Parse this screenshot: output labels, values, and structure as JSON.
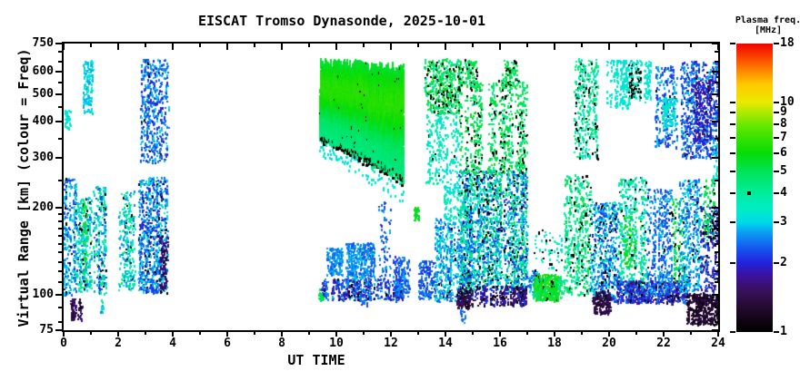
{
  "title": "EISCAT Tromso Dynasonde, 2025-10-01",
  "axes": {
    "xlabel": "UT TIME",
    "ylabel": "Virtual Range [km] (colour = Freq)",
    "x_ticks": [
      0,
      2,
      4,
      6,
      8,
      10,
      12,
      14,
      16,
      18,
      20,
      22,
      24
    ],
    "x_minor_ticks": [
      1,
      3,
      5,
      7,
      9,
      11,
      13,
      15,
      17,
      19,
      21,
      23
    ],
    "x_range": [
      0,
      24
    ],
    "y_ticks": [
      75,
      100,
      200,
      300,
      400,
      500,
      600,
      750
    ],
    "y_minor_ticks": [
      80,
      90,
      110,
      120,
      130,
      140,
      150,
      160,
      170,
      180,
      190,
      250,
      350,
      450,
      550,
      650,
      700
    ],
    "y_range": [
      75,
      750
    ],
    "y_scale": "log",
    "grid": "off"
  },
  "colorbar": {
    "title_line1": "Plasma freq.",
    "title_line2": "[MHz]",
    "tick_labels": [
      18,
      10,
      9,
      8,
      7,
      6,
      5,
      4,
      3,
      2,
      1
    ],
    "range": [
      1,
      18
    ],
    "scale": "log",
    "black_dot_freq": 4
  },
  "chart_data": {
    "type": "scatter",
    "title": "EISCAT Tromso Dynasonde, 2025-10-01",
    "xlabel": "UT TIME",
    "ylabel": "Virtual Range [km] (colour = Freq)",
    "x_unit": "hours UT",
    "y_unit": "km",
    "color_unit": "MHz plasma frequency",
    "x_range": [
      0,
      24
    ],
    "y_range": [
      75,
      750
    ],
    "color_range": [
      1,
      18
    ],
    "seed": 20251001,
    "colormap_stops": [
      [
        1.0,
        "#000000"
      ],
      [
        1.2,
        "#1a0820"
      ],
      [
        1.5,
        "#381058"
      ],
      [
        1.75,
        "#3c119c"
      ],
      [
        2.0,
        "#2222dd"
      ],
      [
        2.3,
        "#1554ee"
      ],
      [
        2.7,
        "#0b9cf2"
      ],
      [
        3.0,
        "#00d8ea"
      ],
      [
        3.4,
        "#00ecc8"
      ],
      [
        4.0,
        "#00ec9e"
      ],
      [
        5.0,
        "#00e355"
      ],
      [
        6.0,
        "#05dc05"
      ],
      [
        7.0,
        "#38e200"
      ],
      [
        8.0,
        "#6ae800"
      ],
      [
        10.0,
        "#eaea00"
      ],
      [
        12.0,
        "#ffc800"
      ],
      [
        14.0,
        "#ff7b00"
      ],
      [
        18.0,
        "#f20000"
      ]
    ],
    "f_region_blob": {
      "t": [
        9.38,
        12.45
      ],
      "top": [
        648,
        618
      ],
      "bot": [
        348,
        250
      ],
      "f_base": 4.35,
      "f_amp": 2.3,
      "fringe_f": [
        3.0,
        3.6
      ],
      "black_bottom": 0.75,
      "step": 0.022
    },
    "clusters": [
      {
        "t": [
          0.0,
          0.45
        ],
        "r": [
          100,
          255
        ],
        "f": [
          2.0,
          3.6
        ],
        "d": 24,
        "blk": 0.07
      },
      {
        "t": [
          0.25,
          0.62
        ],
        "r": [
          82,
          97
        ],
        "f": [
          1.15,
          1.75
        ],
        "d": 10,
        "blk": 0.05
      },
      {
        "t": [
          0.05,
          0.22
        ],
        "r": [
          380,
          440
        ],
        "f": [
          2.9,
          3.5
        ],
        "d": 6,
        "p": 0.8
      },
      {
        "t": [
          0.5,
          1.0
        ],
        "r": [
          103,
          220
        ],
        "f": [
          2.4,
          4.6
        ],
        "d": 20,
        "blk": 0.08
      },
      {
        "t": [
          0.68,
          0.82
        ],
        "r": [
          118,
          210
        ],
        "f": [
          4.8,
          6.0
        ],
        "d": 7
      },
      {
        "t": [
          0.7,
          1.05
        ],
        "r": [
          430,
          655
        ],
        "f": [
          2.7,
          3.4
        ],
        "d": 13,
        "p": 0.85
      },
      {
        "t": [
          1.1,
          1.55
        ],
        "r": [
          100,
          240
        ],
        "f": [
          2.0,
          4.6
        ],
        "d": 20,
        "blk": 0.09
      },
      {
        "t": [
          1.27,
          1.42
        ],
        "r": [
          87,
          97
        ],
        "f": [
          2.5,
          4.2
        ],
        "d": 4,
        "p": 0.7
      },
      {
        "t": [
          2.05,
          2.6
        ],
        "r": [
          104,
          235
        ],
        "f": [
          2.4,
          4.6
        ],
        "d": 18,
        "blk": 0.07
      },
      {
        "t": [
          2.75,
          3.78
        ],
        "r": [
          102,
          258
        ],
        "f": [
          1.9,
          3.3
        ],
        "d": 26,
        "blk": 0.07
      },
      {
        "t": [
          3.5,
          3.78
        ],
        "r": [
          103,
          160
        ],
        "f": [
          1.2,
          1.8
        ],
        "d": 8
      },
      {
        "t": [
          2.8,
          3.78
        ],
        "r": [
          290,
          665
        ],
        "f": [
          1.9,
          3.1
        ],
        "d": 16,
        "blk": 0.02
      },
      {
        "t": [
          9.4,
          12.45
        ],
        "r": [
          96,
          114
        ],
        "f": [
          1.6,
          2.8
        ],
        "d": 7,
        "blk": 0.06,
        "p": 0.75
      },
      {
        "t": [
          9.35,
          9.46
        ],
        "r": [
          97,
          105
        ],
        "f": [
          4.8,
          5.6
        ],
        "d": 4
      },
      {
        "t": [
          9.65,
          10.2
        ],
        "r": [
          118,
          146
        ],
        "f": [
          2.2,
          2.9
        ],
        "d": 11
      },
      {
        "t": [
          10.35,
          11.35
        ],
        "r": [
          112,
          152
        ],
        "f": [
          2.2,
          3.0
        ],
        "d": 13
      },
      {
        "t": [
          10.9,
          11.1
        ],
        "r": [
          92,
          100
        ],
        "f": [
          2.0,
          2.6
        ],
        "d": 3,
        "p": 0.5
      },
      {
        "t": [
          11.55,
          11.95
        ],
        "r": [
          103,
          215
        ],
        "f": [
          2.0,
          2.9
        ],
        "d": 8,
        "p": 0.8
      },
      {
        "t": [
          12.1,
          12.68
        ],
        "r": [
          99,
          136
        ],
        "f": [
          2.0,
          2.8
        ],
        "d": 11
      },
      {
        "t": [
          12.85,
          12.98
        ],
        "r": [
          180,
          205
        ],
        "f": [
          5.0,
          6.2
        ],
        "d": 6
      },
      {
        "t": [
          13.0,
          13.58
        ],
        "r": [
          97,
          132
        ],
        "f": [
          2.0,
          2.8
        ],
        "d": 10
      },
      {
        "t": [
          13.25,
          14.5
        ],
        "r": [
          430,
          665
        ],
        "f": [
          4.0,
          6.0
        ],
        "d": 15,
        "blk": 0.18,
        "p": 0.85
      },
      {
        "t": [
          13.3,
          14.45
        ],
        "r": [
          245,
          430
        ],
        "f": [
          3.0,
          4.2
        ],
        "d": 9,
        "blk": 0.05,
        "p": 0.8
      },
      {
        "t": [
          13.6,
          15.0
        ],
        "r": [
          95,
          185
        ],
        "f": [
          2.2,
          3.6
        ],
        "d": 20,
        "blk": 0.05
      },
      {
        "t": [
          13.9,
          15.0
        ],
        "r": [
          185,
          245
        ],
        "f": [
          3.0,
          3.9
        ],
        "d": 6,
        "p": 0.7
      },
      {
        "t": [
          14.4,
          14.97
        ],
        "r": [
          90,
          107
        ],
        "f": [
          1.2,
          1.7
        ],
        "d": 9,
        "blk": 0.08
      },
      {
        "t": [
          14.55,
          14.68
        ],
        "r": [
          79,
          89
        ],
        "f": [
          2.2,
          2.8
        ],
        "d": 4,
        "p": 0.7
      },
      {
        "t": [
          14.5,
          17.0
        ],
        "r": [
          104,
          272
        ],
        "f": [
          2.0,
          5.2
        ],
        "d": 26,
        "blk": 0.13
      },
      {
        "t": [
          14.5,
          16.95
        ],
        "r": [
          265,
          560
        ],
        "f": [
          4.0,
          5.8
        ],
        "d": 13,
        "blk": 0.17,
        "p": 0.75,
        "gaps": [
          [
            15.3,
            15.55
          ]
        ]
      },
      {
        "t": [
          14.5,
          15.15
        ],
        "r": [
          540,
          660
        ],
        "f": [
          4.2,
          5.6
        ],
        "d": 8,
        "blk": 0.2,
        "p": 0.8
      },
      {
        "t": [
          16.1,
          16.6
        ],
        "r": [
          540,
          660
        ],
        "f": [
          4.2,
          5.6
        ],
        "d": 7,
        "blk": 0.2,
        "p": 0.8
      },
      {
        "t": [
          15.0,
          16.95
        ],
        "r": [
          92,
          108
        ],
        "f": [
          1.3,
          2.2
        ],
        "d": 7,
        "blk": 0.15,
        "p": 0.7
      },
      {
        "t": [
          17.05,
          17.5
        ],
        "r": [
          100,
          122
        ],
        "f": [
          2.2,
          3.2
        ],
        "d": 5,
        "p": 0.7
      },
      {
        "t": [
          17.25,
          18.1
        ],
        "r": [
          96,
          118
        ],
        "f": [
          4.4,
          7.2
        ],
        "d": 15,
        "blk": 0.04
      },
      {
        "t": [
          17.15,
          18.35
        ],
        "r": [
          122,
          168
        ],
        "f": [
          3.0,
          4.0
        ],
        "d": 4,
        "p": 0.6,
        "blk": 0.25
      },
      {
        "t": [
          18.1,
          18.35
        ],
        "r": [
          97,
          116
        ],
        "f": [
          3.5,
          5.0
        ],
        "d": 5,
        "p": 0.7
      },
      {
        "t": [
          18.35,
          19.35
        ],
        "r": [
          100,
          262
        ],
        "f": [
          3.4,
          5.4
        ],
        "d": 17,
        "blk": 0.13
      },
      {
        "t": [
          18.75,
          19.55
        ],
        "r": [
          300,
          665
        ],
        "f": [
          3.2,
          5.0
        ],
        "d": 15,
        "blk": 0.13
      },
      {
        "t": [
          19.35,
          20.35
        ],
        "r": [
          95,
          212
        ],
        "f": [
          2.0,
          3.6
        ],
        "d": 20,
        "blk": 0.09
      },
      {
        "t": [
          19.4,
          20.1
        ],
        "r": [
          86,
          103
        ],
        "f": [
          1.15,
          1.6
        ],
        "d": 8
      },
      {
        "t": [
          19.9,
          20.7
        ],
        "r": [
          450,
          660
        ],
        "f": [
          3.0,
          3.7
        ],
        "d": 9,
        "p": 0.75
      },
      {
        "t": [
          20.72,
          21.18
        ],
        "r": [
          480,
          660
        ],
        "f": [
          3.0,
          3.8
        ],
        "d": 11,
        "blk": 0.4
      },
      {
        "t": [
          21.28,
          21.48
        ],
        "r": [
          470,
          655
        ],
        "f": [
          3.1,
          3.5
        ],
        "d": 15
      },
      {
        "t": [
          20.35,
          21.35
        ],
        "r": [
          100,
          258
        ],
        "f": [
          2.8,
          5.0
        ],
        "d": 17,
        "blk": 0.1
      },
      {
        "t": [
          20.5,
          20.95
        ],
        "r": [
          124,
          188
        ],
        "f": [
          5.0,
          6.2
        ],
        "d": 7
      },
      {
        "t": [
          20.3,
          22.85
        ],
        "r": [
          94,
          112
        ],
        "f": [
          1.6,
          2.6
        ],
        "d": 9,
        "blk": 0.07
      },
      {
        "t": [
          21.4,
          22.28
        ],
        "r": [
          100,
          235
        ],
        "f": [
          2.0,
          3.0
        ],
        "d": 18,
        "blk": 0.04
      },
      {
        "t": [
          21.7,
          22.45
        ],
        "r": [
          330,
          630
        ],
        "f": [
          2.0,
          3.0
        ],
        "d": 11,
        "blk": 0.03
      },
      {
        "t": [
          21.95,
          22.42
        ],
        "r": [
          390,
          490
        ],
        "f": [
          3.0,
          3.6
        ],
        "d": 9
      },
      {
        "t": [
          22.3,
          22.72
        ],
        "r": [
          112,
          218
        ],
        "f": [
          4.4,
          6.0
        ],
        "d": 11,
        "blk": 0.16
      },
      {
        "t": [
          22.55,
          23.38
        ],
        "r": [
          103,
          252
        ],
        "f": [
          2.2,
          3.3
        ],
        "d": 17,
        "blk": 0.05
      },
      {
        "t": [
          22.6,
          24.0
        ],
        "r": [
          300,
          655
        ],
        "f": [
          1.8,
          2.9
        ],
        "d": 18,
        "blk": 0.04
      },
      {
        "t": [
          23.15,
          23.75
        ],
        "r": [
          340,
          560
        ],
        "f": [
          1.5,
          2.2
        ],
        "d": 11
      },
      {
        "t": [
          23.3,
          24.0
        ],
        "r": [
          95,
          205
        ],
        "f": [
          1.5,
          2.6
        ],
        "d": 15,
        "blk": 0.1
      },
      {
        "t": [
          22.85,
          24.0
        ],
        "r": [
          79,
          101
        ],
        "f": [
          1.05,
          1.5
        ],
        "d": 13,
        "blk": 0.06
      },
      {
        "t": [
          23.45,
          23.85
        ],
        "r": [
          155,
          252
        ],
        "f": [
          4.4,
          5.6
        ],
        "d": 8,
        "blk": 0.22
      },
      {
        "t": [
          23.8,
          24.0
        ],
        "r": [
          240,
          335
        ],
        "f": [
          3.0,
          3.6
        ],
        "d": 7
      }
    ]
  }
}
